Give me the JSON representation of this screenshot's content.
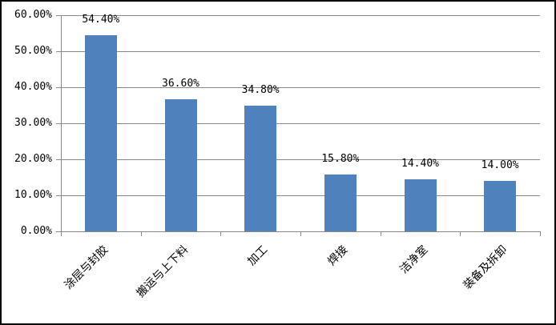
{
  "chart_data": {
    "type": "bar",
    "title": "",
    "xlabel": "",
    "ylabel": "",
    "categories": [
      "涂层与封胶",
      "搬运与上下料",
      "加工",
      "焊接",
      "洁净室",
      "装备及拆卸"
    ],
    "values": [
      54.4,
      36.6,
      34.8,
      15.8,
      14.4,
      14.0
    ],
    "value_labels": [
      "54.40%",
      "36.60%",
      "34.80%",
      "15.80%",
      "14.40%",
      "14.00%"
    ],
    "y_tick_labels": [
      "0.00%",
      "10.00%",
      "20.00%",
      "30.00%",
      "40.00%",
      "50.00%",
      "60.00%"
    ],
    "ylim": [
      0,
      60
    ],
    "y_tick_step": 10,
    "grid": true,
    "legend": false,
    "bar_color": "#4F81BD",
    "gridline_color": "#898989",
    "axis_color": "#898989",
    "background_color": "#FFFFFF",
    "border_color": "#000000"
  }
}
